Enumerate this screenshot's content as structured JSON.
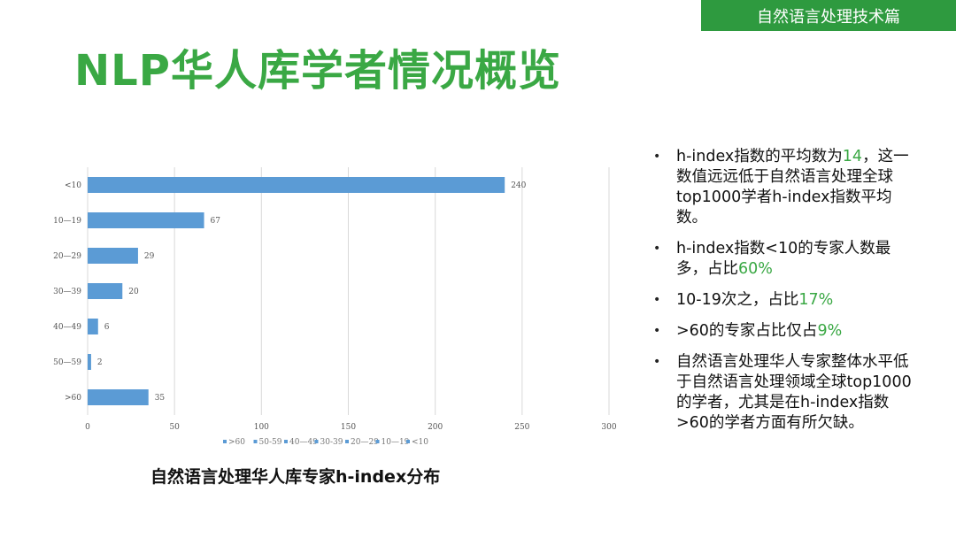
{
  "header": {
    "section_tag": "自然语言处理技术篇"
  },
  "page": {
    "title": "NLP华人库学者情况概览"
  },
  "colors": {
    "accent_green": "#3aa844",
    "tag_green": "#2e9a3f",
    "bar_blue": "#5b9bd5"
  },
  "chart_data": {
    "type": "bar",
    "orientation": "horizontal",
    "categories": [
      "<10",
      "10—19",
      "20—29",
      "30—39",
      "40—49",
      "50—59",
      ">60"
    ],
    "values": [
      240,
      67,
      29,
      20,
      6,
      2,
      35
    ],
    "xlim": [
      0,
      300
    ],
    "xticks": [
      0,
      50,
      100,
      150,
      200,
      250,
      300
    ],
    "grid": "vertical",
    "legend": {
      "placement": "bottom",
      "entries": [
        ">60",
        "50-59",
        "40—49",
        "30-39",
        "20—29",
        "10—19",
        "<10"
      ]
    },
    "caption": "自然语言处理华人库专家h-index分布"
  },
  "bullets": [
    {
      "parts": [
        {
          "text": "h-index指数的平均数为"
        },
        {
          "text": "14",
          "hl": true
        },
        {
          "text": "，这一数值远远低于自然语言处理全球top1000学者h-index指数平均数。"
        }
      ]
    },
    {
      "parts": [
        {
          "text": "h-index指数<10的专家人数最多，占比"
        },
        {
          "text": "60%",
          "hl": true
        }
      ]
    },
    {
      "parts": [
        {
          "text": "10-19次之，占比"
        },
        {
          "text": "17%",
          "hl": true
        }
      ]
    },
    {
      "parts": [
        {
          "text": ">60的专家占比仅占"
        },
        {
          "text": "9%",
          "hl": true
        }
      ]
    },
    {
      "parts": [
        {
          "text": "自然语言处理华人专家整体水平低于自然语言处理领域全球top1000的学者，尤其是在h-index指数>60的学者方面有所欠缺。"
        }
      ]
    }
  ]
}
